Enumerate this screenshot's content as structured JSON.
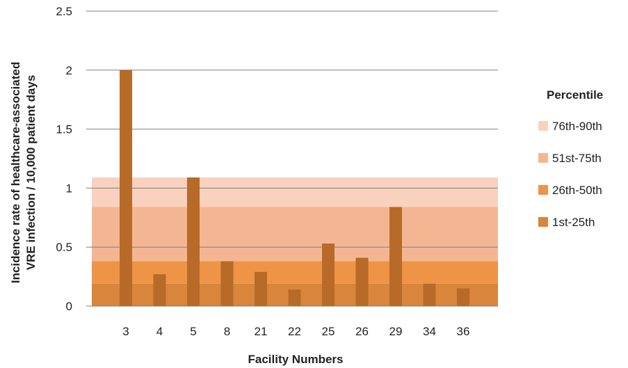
{
  "chart_data": {
    "type": "bar",
    "title": "",
    "xlabel": "Facility Numbers",
    "ylabel_lines": [
      "Incidence rate of healthcare-associated",
      "VRE infection / 10,000 patient days"
    ],
    "categories": [
      "3",
      "4",
      "5",
      "8",
      "21",
      "22",
      "25",
      "26",
      "29",
      "34",
      "36"
    ],
    "values": [
      2.0,
      0.27,
      1.09,
      0.38,
      0.29,
      0.14,
      0.53,
      0.41,
      0.84,
      0.19,
      0.15
    ],
    "bar_color": "#b86a28",
    "ylim": [
      0,
      2.5
    ],
    "yticks": [
      "0",
      "0.5",
      "1",
      "1.5",
      "2",
      "2.5"
    ],
    "ytick_values": [
      0,
      0.5,
      1,
      1.5,
      2,
      2.5
    ],
    "grid": true,
    "legend_position": "right",
    "legend_title": "Percentile",
    "bands": [
      {
        "label": "76th-90th",
        "from": 0.84,
        "to": 1.09,
        "color": "#f8d2bf"
      },
      {
        "label": "51st-75th",
        "from": 0.38,
        "to": 0.84,
        "color": "#f4b692"
      },
      {
        "label": "26th-50th",
        "from": 0.19,
        "to": 0.38,
        "color": "#ee9446"
      },
      {
        "label": "1st-25th",
        "from": 0.0,
        "to": 0.19,
        "color": "#d9853c"
      }
    ]
  }
}
